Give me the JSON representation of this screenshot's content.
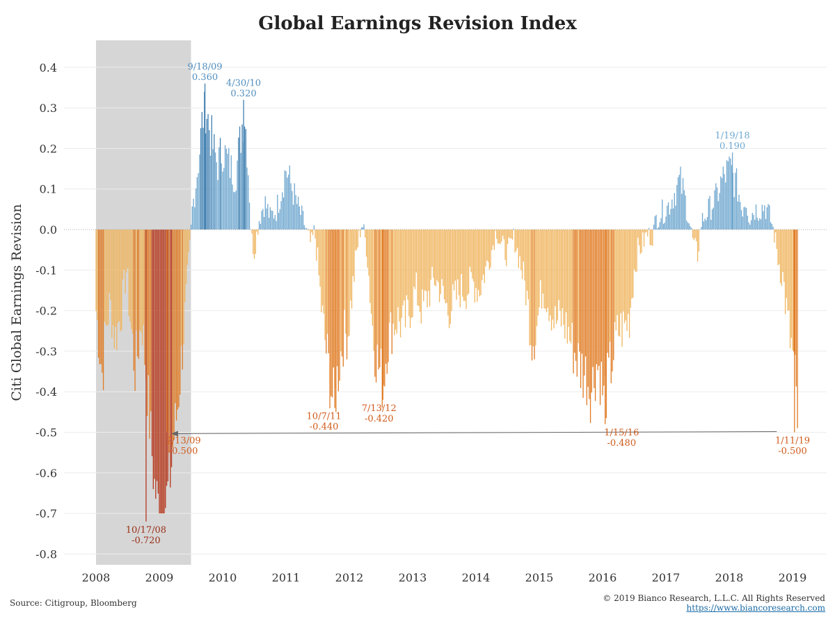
{
  "colors": {
    "positive": "#6fa7cf",
    "positive_strong": "#3f7fb0",
    "negative_light": "#efb55e",
    "negative_mid": "#e07a22",
    "negative_dark": "#b5361a",
    "recession_shade": "#d6d6d6",
    "arrow": "#666666"
  },
  "chart_data": {
    "type": "bar",
    "title": "Global Earnings Revision Index",
    "ylabel": "Citi Global Earnings Revision",
    "xlabel": "",
    "ylim": [
      -0.8,
      0.45
    ],
    "yticks": [
      0.4,
      0.3,
      0.2,
      0.1,
      0.0,
      -0.1,
      -0.2,
      -0.3,
      -0.4,
      -0.5,
      -0.6,
      -0.7,
      -0.8
    ],
    "ytick_labels": [
      "0.4",
      "0.3",
      "0.2",
      "0.1",
      "0.0",
      "-0.1",
      "-0.2",
      "-0.3",
      "-0.4",
      "-0.5",
      "-0.6",
      "-0.7",
      "-0.8"
    ],
    "xlim": [
      2008.0,
      2019.25
    ],
    "xticks": [
      "2008",
      "2009",
      "2010",
      "2011",
      "2012",
      "2013",
      "2014",
      "2015",
      "2016",
      "2017",
      "2018",
      "2019"
    ],
    "recession_shading": [
      2008.0,
      2009.5
    ],
    "zero_line": "dotted",
    "grid": "horizontal",
    "anchors": [
      [
        2008.0,
        -0.2
      ],
      [
        2008.05,
        -0.28
      ],
      [
        2008.1,
        -0.36
      ],
      [
        2008.15,
        -0.25
      ],
      [
        2008.22,
        -0.18
      ],
      [
        2008.3,
        -0.27
      ],
      [
        2008.4,
        -0.2
      ],
      [
        2008.48,
        -0.1
      ],
      [
        2008.55,
        -0.24
      ],
      [
        2008.62,
        -0.35
      ],
      [
        2008.68,
        -0.27
      ],
      [
        2008.72,
        -0.22
      ],
      [
        2008.78,
        -0.33
      ],
      [
        2008.85,
        -0.48
      ],
      [
        2008.92,
        -0.63
      ],
      [
        2008.97,
        -0.67
      ],
      [
        2009.02,
        -0.7
      ],
      [
        2009.08,
        -0.68
      ],
      [
        2009.12,
        -0.66
      ],
      [
        2009.18,
        -0.6
      ],
      [
        2009.22,
        -0.52
      ],
      [
        2009.28,
        -0.45
      ],
      [
        2009.35,
        -0.32
      ],
      [
        2009.42,
        -0.18
      ],
      [
        2009.48,
        -0.05
      ],
      [
        2009.52,
        0.05
      ],
      [
        2009.58,
        0.12
      ],
      [
        2009.65,
        0.22
      ],
      [
        2009.72,
        0.33
      ],
      [
        2009.78,
        0.26
      ],
      [
        2009.85,
        0.2
      ],
      [
        2009.92,
        0.16
      ],
      [
        2010.0,
        0.2
      ],
      [
        2010.1,
        0.16
      ],
      [
        2010.2,
        0.13
      ],
      [
        2010.26,
        0.2
      ],
      [
        2010.34,
        0.3
      ],
      [
        2010.38,
        0.22
      ],
      [
        2010.42,
        0.1
      ],
      [
        2010.45,
        -0.02
      ],
      [
        2010.5,
        -0.05
      ],
      [
        2010.58,
        0.03
      ],
      [
        2010.66,
        0.07
      ],
      [
        2010.75,
        0.03
      ],
      [
        2010.85,
        0.05
      ],
      [
        2010.93,
        0.1
      ],
      [
        2011.0,
        0.15
      ],
      [
        2011.06,
        0.12
      ],
      [
        2011.12,
        0.09
      ],
      [
        2011.2,
        0.05
      ],
      [
        2011.28,
        0.02
      ],
      [
        2011.35,
        -0.02
      ],
      [
        2011.4,
        -0.04
      ],
      [
        2011.45,
        0.0
      ],
      [
        2011.5,
        -0.08
      ],
      [
        2011.55,
        -0.18
      ],
      [
        2011.62,
        -0.28
      ],
      [
        2011.68,
        -0.35
      ],
      [
        2011.72,
        -0.4
      ],
      [
        2011.76,
        -0.43
      ],
      [
        2011.82,
        -0.35
      ],
      [
        2011.9,
        -0.27
      ],
      [
        2011.98,
        -0.25
      ],
      [
        2012.05,
        -0.15
      ],
      [
        2012.12,
        -0.05
      ],
      [
        2012.2,
        0.02
      ],
      [
        2012.28,
        -0.05
      ],
      [
        2012.32,
        -0.14
      ],
      [
        2012.38,
        -0.27
      ],
      [
        2012.45,
        -0.33
      ],
      [
        2012.53,
        -0.38
      ],
      [
        2012.6,
        -0.28
      ],
      [
        2012.68,
        -0.24
      ],
      [
        2012.76,
        -0.22
      ],
      [
        2012.85,
        -0.24
      ],
      [
        2012.95,
        -0.2
      ],
      [
        2013.05,
        -0.15
      ],
      [
        2013.15,
        -0.2
      ],
      [
        2013.25,
        -0.16
      ],
      [
        2013.35,
        -0.12
      ],
      [
        2013.45,
        -0.15
      ],
      [
        2013.55,
        -0.2
      ],
      [
        2013.65,
        -0.18
      ],
      [
        2013.75,
        -0.15
      ],
      [
        2013.85,
        -0.15
      ],
      [
        2013.95,
        -0.13
      ],
      [
        2014.05,
        -0.15
      ],
      [
        2014.15,
        -0.1
      ],
      [
        2014.25,
        -0.05
      ],
      [
        2014.32,
        0.0
      ],
      [
        2014.4,
        -0.04
      ],
      [
        2014.5,
        -0.06
      ],
      [
        2014.6,
        -0.02
      ],
      [
        2014.7,
        -0.08
      ],
      [
        2014.8,
        -0.16
      ],
      [
        2014.88,
        -0.27
      ],
      [
        2014.95,
        -0.25
      ],
      [
        2015.05,
        -0.14
      ],
      [
        2015.15,
        -0.18
      ],
      [
        2015.25,
        -0.23
      ],
      [
        2015.35,
        -0.22
      ],
      [
        2015.45,
        -0.25
      ],
      [
        2015.55,
        -0.3
      ],
      [
        2015.65,
        -0.34
      ],
      [
        2015.75,
        -0.36
      ],
      [
        2015.82,
        -0.4
      ],
      [
        2015.9,
        -0.33
      ],
      [
        2015.96,
        -0.35
      ],
      [
        2016.02,
        -0.42
      ],
      [
        2016.08,
        -0.38
      ],
      [
        2016.15,
        -0.32
      ],
      [
        2016.25,
        -0.25
      ],
      [
        2016.35,
        -0.24
      ],
      [
        2016.42,
        -0.22
      ],
      [
        2016.5,
        -0.1
      ],
      [
        2016.56,
        -0.05
      ],
      [
        2016.62,
        -0.04
      ],
      [
        2016.7,
        -0.01
      ],
      [
        2016.78,
        -0.02
      ],
      [
        2016.85,
        0.03
      ],
      [
        2016.92,
        0.04
      ],
      [
        2017.0,
        0.05
      ],
      [
        2017.08,
        0.07
      ],
      [
        2017.16,
        0.1
      ],
      [
        2017.22,
        0.12
      ],
      [
        2017.28,
        0.09
      ],
      [
        2017.36,
        0.03
      ],
      [
        2017.45,
        -0.05
      ],
      [
        2017.5,
        -0.06
      ],
      [
        2017.56,
        0.02
      ],
      [
        2017.64,
        0.04
      ],
      [
        2017.72,
        0.06
      ],
      [
        2017.8,
        0.08
      ],
      [
        2017.88,
        0.12
      ],
      [
        2017.96,
        0.14
      ],
      [
        2018.02,
        0.15
      ],
      [
        2018.08,
        0.12
      ],
      [
        2018.14,
        0.1
      ],
      [
        2018.2,
        0.05
      ],
      [
        2018.26,
        0.08
      ],
      [
        2018.32,
        0.03
      ],
      [
        2018.4,
        0.05
      ],
      [
        2018.48,
        0.05
      ],
      [
        2018.56,
        0.06
      ],
      [
        2018.62,
        0.04
      ],
      [
        2018.68,
        0.01
      ],
      [
        2018.72,
        -0.02
      ],
      [
        2018.78,
        -0.08
      ],
      [
        2018.85,
        -0.12
      ],
      [
        2018.9,
        -0.2
      ],
      [
        2018.95,
        -0.26
      ],
      [
        2019.0,
        -0.31
      ],
      [
        2019.04,
        -0.38
      ],
      [
        2019.08,
        -0.48
      ]
    ],
    "peak_bars": [
      [
        2008.79,
        -0.72
      ],
      [
        2009.12,
        -0.5
      ],
      [
        2009.72,
        0.36
      ],
      [
        2010.33,
        0.32
      ],
      [
        2011.77,
        -0.44
      ],
      [
        2012.53,
        -0.42
      ],
      [
        2016.04,
        -0.48
      ],
      [
        2018.05,
        0.19
      ],
      [
        2019.03,
        -0.5
      ]
    ],
    "annotations": [
      {
        "date": "9/18/09",
        "value": "0.360",
        "x": 2009.72,
        "y": 0.36,
        "pos": "above",
        "color": "#4f8dbd"
      },
      {
        "date": "4/30/10",
        "value": "0.320",
        "x": 2010.33,
        "y": 0.32,
        "pos": "above",
        "color": "#4f8dbd"
      },
      {
        "date": "1/19/18",
        "value": "0.190",
        "x": 2018.05,
        "y": 0.19,
        "pos": "above",
        "color": "#6fa7cf"
      },
      {
        "date": "10/17/08",
        "value": "-0.720",
        "x": 2008.79,
        "y": -0.72,
        "pos": "below",
        "color": "#9a2f16"
      },
      {
        "date": "2/13/09",
        "value": "-0.500",
        "x": 2009.38,
        "y": -0.5,
        "pos": "below",
        "color": "#d05a1a"
      },
      {
        "date": "10/7/11",
        "value": "-0.440",
        "x": 2011.6,
        "y": -0.44,
        "pos": "below",
        "color": "#d05a1a"
      },
      {
        "date": "7/13/12",
        "value": "-0.420",
        "x": 2012.47,
        "y": -0.42,
        "pos": "below",
        "color": "#d05a1a"
      },
      {
        "date": "1/15/16",
        "value": "-0.480",
        "x": 2016.3,
        "y": -0.48,
        "pos": "below",
        "color": "#d05a1a"
      },
      {
        "date": "1/11/19",
        "value": "-0.500",
        "x": 2019.0,
        "y": -0.5,
        "pos": "below",
        "color": "#d05a1a"
      }
    ],
    "arrow": {
      "from": [
        2018.75,
        -0.5
      ],
      "to": [
        2009.12,
        -0.5
      ]
    }
  },
  "footer": {
    "source": "Source: Citigroup, Bloomberg",
    "copyright": "© 2019 Bianco Research, L.L.C. All Rights Reserved",
    "url": "https://www.biancoresearch.com"
  }
}
